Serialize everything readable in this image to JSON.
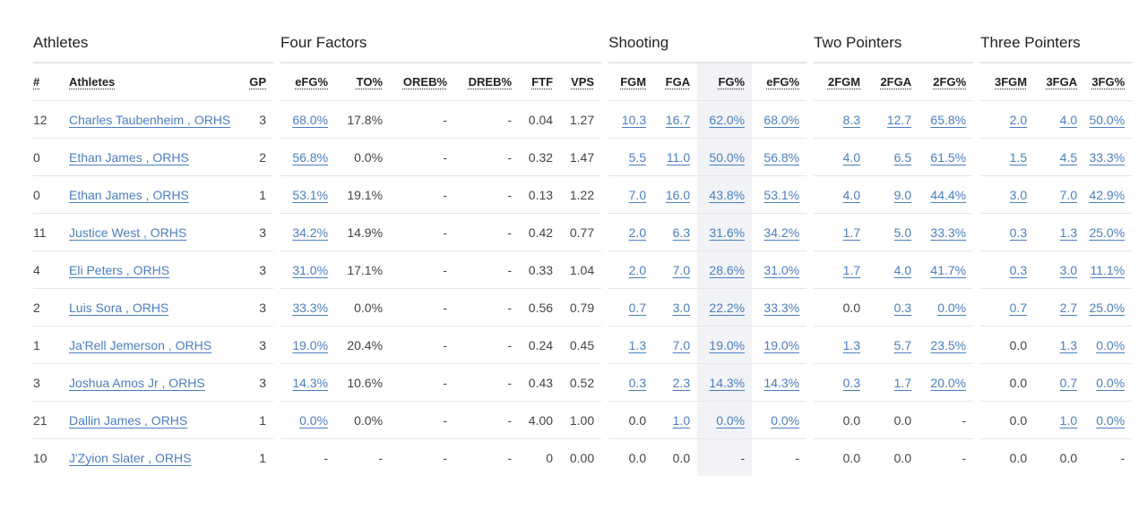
{
  "groups": {
    "athletes": "Athletes",
    "four_factors": "Four Factors",
    "shooting": "Shooting",
    "two_pointers": "Two Pointers",
    "three_pointers": "Three Pointers"
  },
  "headers": {
    "num": "#",
    "athletes": "Athletes",
    "gp": "GP",
    "efg": "eFG%",
    "to": "TO%",
    "oreb": "OREB%",
    "dreb": "DREB%",
    "ftf": "FTF",
    "vps": "VPS",
    "fgm": "FGM",
    "fga": "FGA",
    "fg": "FG%",
    "efg2": "eFG%",
    "m2": "2FGM",
    "a2": "2FGA",
    "p2": "2FG%",
    "m3": "3FGM",
    "a3": "3FGA",
    "p3": "3FG%"
  },
  "colors": {
    "link": "#4a7fc1",
    "highlight_column": "#f1f3f6",
    "divider": "#e6e6e6"
  },
  "rows": [
    {
      "num": "12",
      "name": "Charles Taubenheim , ORHS",
      "gp": "3",
      "efg": "68.0%",
      "to": "17.8%",
      "oreb": "-",
      "dreb": "-",
      "ftf": "0.04",
      "vps": "1.27",
      "fgm": "10.3",
      "fga": "16.7",
      "fg": "62.0%",
      "efg2": "68.0%",
      "m2": "8.3",
      "a2": "12.7",
      "p2": "65.8%",
      "m3": "2.0",
      "a3": "4.0",
      "p3": "50.0%"
    },
    {
      "num": "0",
      "name": "Ethan James , ORHS",
      "gp": "2",
      "efg": "56.8%",
      "to": "0.0%",
      "oreb": "-",
      "dreb": "-",
      "ftf": "0.32",
      "vps": "1.47",
      "fgm": "5.5",
      "fga": "11.0",
      "fg": "50.0%",
      "efg2": "56.8%",
      "m2": "4.0",
      "a2": "6.5",
      "p2": "61.5%",
      "m3": "1.5",
      "a3": "4.5",
      "p3": "33.3%"
    },
    {
      "num": "0",
      "name": "Ethan James , ORHS",
      "gp": "1",
      "efg": "53.1%",
      "to": "19.1%",
      "oreb": "-",
      "dreb": "-",
      "ftf": "0.13",
      "vps": "1.22",
      "fgm": "7.0",
      "fga": "16.0",
      "fg": "43.8%",
      "efg2": "53.1%",
      "m2": "4.0",
      "a2": "9.0",
      "p2": "44.4%",
      "m3": "3.0",
      "a3": "7.0",
      "p3": "42.9%"
    },
    {
      "num": "11",
      "name": "Justice West , ORHS",
      "gp": "3",
      "efg": "34.2%",
      "to": "14.9%",
      "oreb": "-",
      "dreb": "-",
      "ftf": "0.42",
      "vps": "0.77",
      "fgm": "2.0",
      "fga": "6.3",
      "fg": "31.6%",
      "efg2": "34.2%",
      "m2": "1.7",
      "a2": "5.0",
      "p2": "33.3%",
      "m3": "0.3",
      "a3": "1.3",
      "p3": "25.0%"
    },
    {
      "num": "4",
      "name": "Eli Peters , ORHS",
      "gp": "3",
      "efg": "31.0%",
      "to": "17.1%",
      "oreb": "-",
      "dreb": "-",
      "ftf": "0.33",
      "vps": "1.04",
      "fgm": "2.0",
      "fga": "7.0",
      "fg": "28.6%",
      "efg2": "31.0%",
      "m2": "1.7",
      "a2": "4.0",
      "p2": "41.7%",
      "m3": "0.3",
      "a3": "3.0",
      "p3": "11.1%"
    },
    {
      "num": "2",
      "name": "Luis Sora , ORHS",
      "gp": "3",
      "efg": "33.3%",
      "to": "0.0%",
      "oreb": "-",
      "dreb": "-",
      "ftf": "0.56",
      "vps": "0.79",
      "fgm": "0.7",
      "fga": "3.0",
      "fg": "22.2%",
      "efg2": "33.3%",
      "m2": "0.0",
      "a2": "0.3",
      "p2": "0.0%",
      "m3": "0.7",
      "a3": "2.7",
      "p3": "25.0%"
    },
    {
      "num": "1",
      "name": "Ja'Rell Jemerson , ORHS",
      "gp": "3",
      "efg": "19.0%",
      "to": "20.4%",
      "oreb": "-",
      "dreb": "-",
      "ftf": "0.24",
      "vps": "0.45",
      "fgm": "1.3",
      "fga": "7.0",
      "fg": "19.0%",
      "efg2": "19.0%",
      "m2": "1.3",
      "a2": "5.7",
      "p2": "23.5%",
      "m3": "0.0",
      "a3": "1.3",
      "p3": "0.0%"
    },
    {
      "num": "3",
      "name": "Joshua Amos Jr , ORHS",
      "gp": "3",
      "efg": "14.3%",
      "to": "10.6%",
      "oreb": "-",
      "dreb": "-",
      "ftf": "0.43",
      "vps": "0.52",
      "fgm": "0.3",
      "fga": "2.3",
      "fg": "14.3%",
      "efg2": "14.3%",
      "m2": "0.3",
      "a2": "1.7",
      "p2": "20.0%",
      "m3": "0.0",
      "a3": "0.7",
      "p3": "0.0%"
    },
    {
      "num": "21",
      "name": "Dallin James , ORHS",
      "gp": "1",
      "efg": "0.0%",
      "to": "0.0%",
      "oreb": "-",
      "dreb": "-",
      "ftf": "4.00",
      "vps": "1.00",
      "fgm": "0.0",
      "fga": "1.0",
      "fg": "0.0%",
      "efg2": "0.0%",
      "m2": "0.0",
      "a2": "0.0",
      "p2": "-",
      "m3": "0.0",
      "a3": "1.0",
      "p3": "0.0%"
    },
    {
      "num": "10",
      "name": "J'Zyion Slater , ORHS",
      "gp": "1",
      "efg": "-",
      "to": "-",
      "oreb": "-",
      "dreb": "-",
      "ftf": "0",
      "vps": "0.00",
      "fgm": "0.0",
      "fga": "0.0",
      "fg": "-",
      "efg2": "-",
      "m2": "0.0",
      "a2": "0.0",
      "p2": "-",
      "m3": "0.0",
      "a3": "0.0",
      "p3": "-"
    }
  ]
}
